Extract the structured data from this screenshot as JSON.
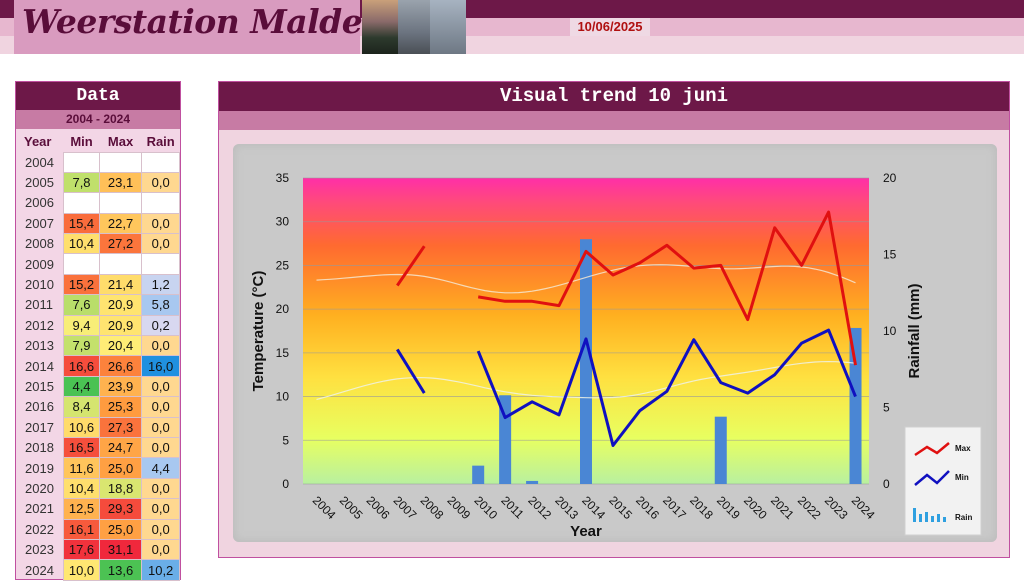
{
  "header": {
    "title": "Weerstation Malderen",
    "date": "10/06/2025"
  },
  "data_table": {
    "title": "Data",
    "range": "2004 - 2024",
    "columns": [
      "Year",
      "Min",
      "Max",
      "Rain"
    ],
    "rows": [
      {
        "year": "2004",
        "min": "",
        "max": "",
        "rain": ""
      },
      {
        "year": "2005",
        "min": "7,8",
        "max": "23,1",
        "rain": "0,0"
      },
      {
        "year": "2006",
        "min": "",
        "max": "",
        "rain": ""
      },
      {
        "year": "2007",
        "min": "15,4",
        "max": "22,7",
        "rain": "0,0"
      },
      {
        "year": "2008",
        "min": "10,4",
        "max": "27,2",
        "rain": "0,0"
      },
      {
        "year": "2009",
        "min": "",
        "max": "",
        "rain": ""
      },
      {
        "year": "2010",
        "min": "15,2",
        "max": "21,4",
        "rain": "1,2"
      },
      {
        "year": "2011",
        "min": "7,6",
        "max": "20,9",
        "rain": "5,8"
      },
      {
        "year": "2012",
        "min": "9,4",
        "max": "20,9",
        "rain": "0,2"
      },
      {
        "year": "2013",
        "min": "7,9",
        "max": "20,4",
        "rain": "0,0"
      },
      {
        "year": "2014",
        "min": "16,6",
        "max": "26,6",
        "rain": "16,0"
      },
      {
        "year": "2015",
        "min": "4,4",
        "max": "23,9",
        "rain": "0,0"
      },
      {
        "year": "2016",
        "min": "8,4",
        "max": "25,3",
        "rain": "0,0"
      },
      {
        "year": "2017",
        "min": "10,6",
        "max": "27,3",
        "rain": "0,0"
      },
      {
        "year": "2018",
        "min": "16,5",
        "max": "24,7",
        "rain": "0,0"
      },
      {
        "year": "2019",
        "min": "11,6",
        "max": "25,0",
        "rain": "4,4"
      },
      {
        "year": "2020",
        "min": "10,4",
        "max": "18,8",
        "rain": "0,0"
      },
      {
        "year": "2021",
        "min": "12,5",
        "max": "29,3",
        "rain": "0,0"
      },
      {
        "year": "2022",
        "min": "16,1",
        "max": "25,0",
        "rain": "0,0"
      },
      {
        "year": "2023",
        "min": "17,6",
        "max": "31,1",
        "rain": "0,0"
      },
      {
        "year": "2024",
        "min": "10,0",
        "max": "13,6",
        "rain": "10,2"
      }
    ]
  },
  "chart_data": {
    "type": "line",
    "title": "Visual trend 10 juni",
    "xlabel": "Year",
    "ylabel": "Temperature (°C)",
    "y2label": "Rainfall (mm)",
    "ylim": [
      0,
      35
    ],
    "y2lim": [
      0,
      20
    ],
    "yticks": [
      0,
      5,
      10,
      15,
      20,
      25,
      30,
      35
    ],
    "y2ticks": [
      0,
      5,
      10,
      15,
      20
    ],
    "categories": [
      "2004",
      "2005",
      "2006",
      "2007",
      "2008",
      "2009",
      "2010",
      "2011",
      "2012",
      "2013",
      "2014",
      "2015",
      "2016",
      "2017",
      "2018",
      "2019",
      "2020",
      "2021",
      "2022",
      "2023",
      "2024"
    ],
    "series": [
      {
        "name": "Max",
        "type": "line",
        "color": "#e01010",
        "values": [
          null,
          23.1,
          null,
          22.7,
          27.2,
          null,
          21.4,
          20.9,
          20.9,
          20.4,
          26.6,
          23.9,
          25.3,
          27.3,
          24.7,
          25.0,
          18.8,
          29.3,
          25.0,
          31.1,
          13.6
        ]
      },
      {
        "name": "Min",
        "type": "line",
        "color": "#1010c0",
        "values": [
          null,
          7.8,
          null,
          15.4,
          10.4,
          null,
          15.2,
          7.6,
          9.4,
          7.9,
          16.6,
          4.4,
          8.4,
          10.6,
          16.5,
          11.6,
          10.4,
          12.5,
          16.1,
          17.6,
          10.0
        ]
      },
      {
        "name": "Rain",
        "type": "bar",
        "axis": "y2",
        "color": "#4a86d4",
        "values": [
          null,
          0.0,
          null,
          0.0,
          0.0,
          null,
          1.2,
          5.8,
          0.2,
          0.0,
          16.0,
          0.0,
          0.0,
          0.0,
          0.0,
          4.4,
          0.0,
          0.0,
          0.0,
          0.0,
          10.2
        ]
      }
    ],
    "legend": {
      "position": "right",
      "items": [
        "Max",
        "Min",
        "Rain"
      ]
    },
    "grid": true
  },
  "colors": {
    "header_dark": "#6d1848",
    "header_pink": "#e7b7cf",
    "accent_pink": "#c77ba4",
    "date_red": "#b01010"
  }
}
